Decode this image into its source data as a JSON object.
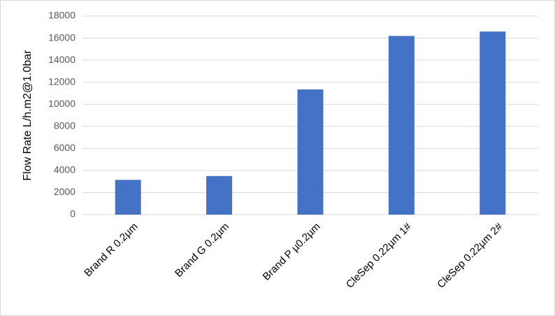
{
  "chart_data": {
    "type": "bar",
    "y_label": "Flow Rate L/h.m2@1.0bar",
    "categories": [
      "Brand R 0.2µm",
      "Brand G 0.2µm",
      "Brand P µ0.2µm",
      "CleSep 0.22µm 1#",
      "CleSep 0.22µm 2#"
    ],
    "values": [
      3150,
      3500,
      11350,
      16200,
      16600
    ],
    "color": "#4472c4",
    "ylim": [
      0,
      18000
    ],
    "yticks": [
      0,
      2000,
      4000,
      6000,
      8000,
      10000,
      12000,
      14000,
      16000,
      18000
    ],
    "grid": true
  }
}
